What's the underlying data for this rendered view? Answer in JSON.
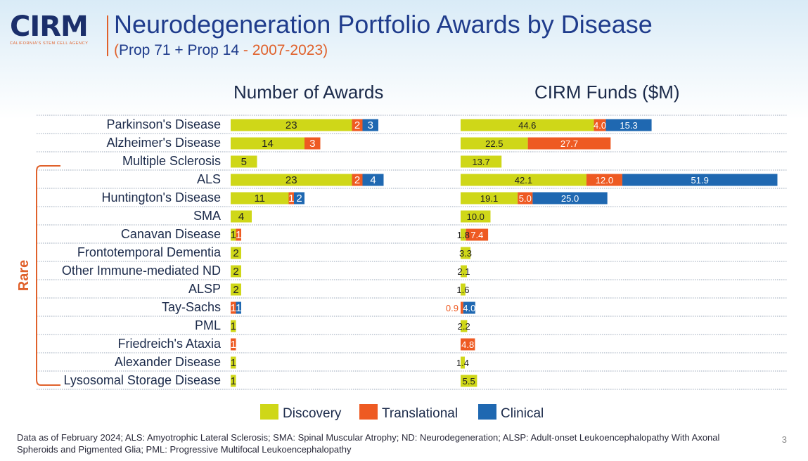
{
  "header": {
    "logo_text": "CIRM",
    "logo_tagline": "CALIFORNIA'S STEM CELL AGENCY",
    "title": "Neurodegeneration Portfolio Awards by Disease",
    "subtitle_open": "(",
    "subtitle_props": "Prop 71 + Prop 14",
    "subtitle_years": " - 2007-2023)"
  },
  "rare_label": "Rare",
  "colors": {
    "discovery": "#cfd718",
    "translational": "#ee5a22",
    "clinical": "#1f68b1",
    "title_blue": "#1f3c8c",
    "accent_orange": "#e0612b"
  },
  "chart_data": [
    {
      "type": "bar",
      "orientation": "horizontal",
      "stacked": true,
      "title": "Number of Awards",
      "categories": [
        "Parkinson's Disease",
        "Alzheimer's Disease",
        "Multiple Sclerosis",
        "ALS",
        "Huntington's Disease",
        "SMA",
        "Canavan Disease",
        "Frontotemporal Dementia",
        "Other Immune-mediated ND",
        "ALSP",
        "Tay-Sachs",
        "PML",
        "Friedreich's Ataxia",
        "Alexander Disease",
        "Lysosomal Storage Disease"
      ],
      "series": [
        {
          "name": "Discovery",
          "values": [
            23,
            14,
            5,
            23,
            11,
            4,
            1,
            2,
            2,
            2,
            0,
            1,
            0,
            1,
            1
          ]
        },
        {
          "name": "Translational",
          "values": [
            2,
            3,
            0,
            2,
            1,
            0,
            1,
            0,
            0,
            0,
            1,
            0,
            1,
            0,
            0
          ]
        },
        {
          "name": "Clinical",
          "values": [
            3,
            0,
            0,
            4,
            2,
            0,
            0,
            0,
            0,
            0,
            1,
            0,
            0,
            0,
            0
          ]
        }
      ],
      "labels": [
        [
          "23",
          "2",
          "3"
        ],
        [
          "14",
          "3",
          ""
        ],
        [
          "5",
          "",
          ""
        ],
        [
          "23",
          "2",
          "4"
        ],
        [
          "11",
          "1",
          "2"
        ],
        [
          "4",
          "",
          ""
        ],
        [
          "1",
          "1",
          ""
        ],
        [
          "2",
          "",
          ""
        ],
        [
          "2",
          "",
          ""
        ],
        [
          "2",
          "",
          ""
        ],
        [
          "",
          "1",
          "1"
        ],
        [
          "1",
          "",
          ""
        ],
        [
          "",
          "1",
          ""
        ],
        [
          "1",
          "",
          ""
        ],
        [
          "1",
          "",
          ""
        ]
      ],
      "legend": "bottom"
    },
    {
      "type": "bar",
      "orientation": "horizontal",
      "stacked": true,
      "title": "CIRM Funds ($M)",
      "categories": [
        "Parkinson's Disease",
        "Alzheimer's Disease",
        "Multiple Sclerosis",
        "ALS",
        "Huntington's Disease",
        "SMA",
        "Canavan Disease",
        "Frontotemporal Dementia",
        "Other Immune-mediated ND",
        "ALSP",
        "Tay-Sachs",
        "PML",
        "Friedreich's Ataxia",
        "Alexander Disease",
        "Lysosomal Storage Disease"
      ],
      "series": [
        {
          "name": "Discovery",
          "values": [
            44.6,
            22.5,
            13.7,
            42.1,
            19.1,
            10.0,
            1.8,
            3.3,
            2.1,
            1.6,
            0,
            2.2,
            0,
            1.4,
            5.5
          ]
        },
        {
          "name": "Translational",
          "values": [
            4.0,
            27.7,
            0,
            12.0,
            5.0,
            0,
            7.4,
            0,
            0,
            0,
            0.9,
            0,
            4.8,
            0,
            0
          ]
        },
        {
          "name": "Clinical",
          "values": [
            15.3,
            0,
            0,
            51.9,
            25.0,
            0,
            0,
            0,
            0,
            0,
            4.0,
            0,
            0,
            0,
            0
          ]
        }
      ],
      "labels": [
        [
          "44.6",
          "4.0",
          "15.3"
        ],
        [
          "22.5",
          "27.7",
          ""
        ],
        [
          "13.7",
          "",
          ""
        ],
        [
          "42.1",
          "12.0",
          "51.9"
        ],
        [
          "19.1",
          "5.0",
          "25.0"
        ],
        [
          "10.0",
          "",
          ""
        ],
        [
          "1.8",
          "7.4",
          ""
        ],
        [
          "3.3",
          "",
          ""
        ],
        [
          "2.1",
          "",
          ""
        ],
        [
          "1.6",
          "",
          ""
        ],
        [
          "",
          "0.9",
          "4.0"
        ],
        [
          "2.2",
          "",
          ""
        ],
        [
          "",
          "4.8",
          ""
        ],
        [
          "1.4",
          "",
          ""
        ],
        [
          "5.5",
          "",
          ""
        ]
      ],
      "legend": "bottom"
    }
  ],
  "legend": [
    "Discovery",
    "Translational",
    "Clinical"
  ],
  "footnote": "Data as of February 2024; ALS: Amyotrophic Lateral Sclerosis; SMA: Spinal Muscular Atrophy; ND: Neurodegeneration; ALSP: Adult-onset Leukoencephalopathy With Axonal Spheroids and Pigmented Glia; PML: Progressive Multifocal Leukoencephalopathy",
  "page_number": "3"
}
